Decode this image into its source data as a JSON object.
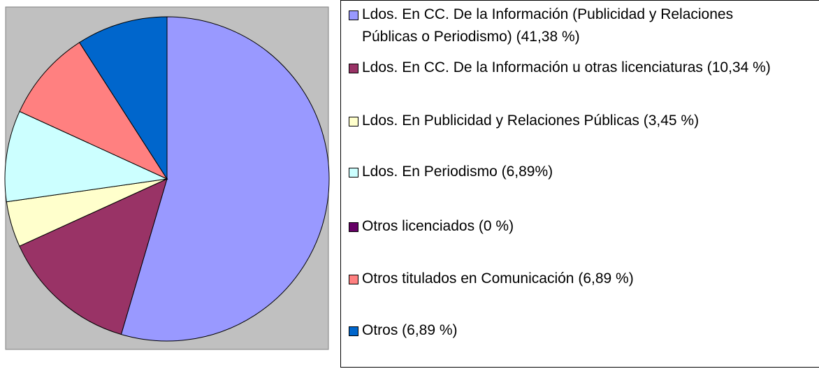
{
  "chart_data": {
    "type": "pie",
    "categories": [
      "Ldos. En CC. De la Información (Publicidad y Relaciones Públicas o Periodismo) (41,38 %)",
      "Ldos. En CC. De la Información u otras licenciaturas (10,34 %)",
      "Ldos. En Publicidad y Relaciones Públicas (3,45 %)",
      "Ldos. En Periodismo (6,89%)",
      "Otros licenciados (0 %)",
      "Otros titulados en Comunicación (6,89 %)",
      "Otros (6,89 %)"
    ],
    "values": [
      41.38,
      10.34,
      3.45,
      6.89,
      0,
      6.89,
      6.89
    ],
    "colors": [
      "#9999ff",
      "#993366",
      "#ffffcc",
      "#ccffff",
      "#660066",
      "#ff8080",
      "#0066cc"
    ],
    "legend": "right"
  }
}
